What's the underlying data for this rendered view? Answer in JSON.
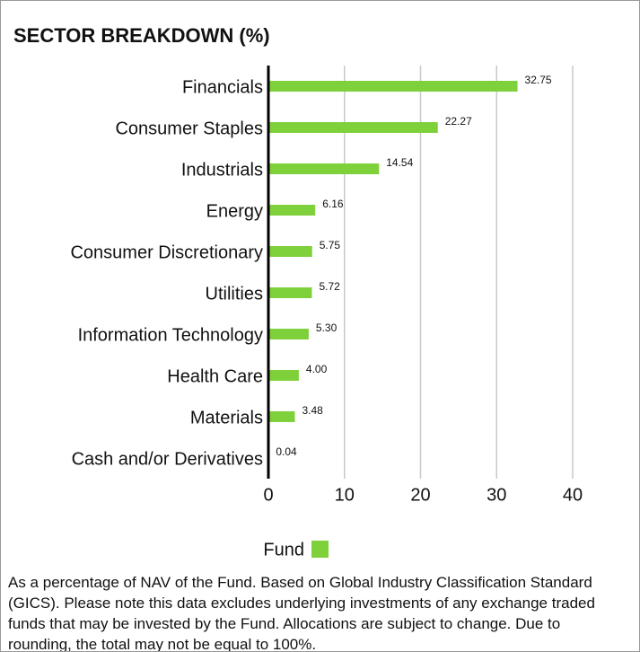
{
  "chart_data": {
    "type": "bar",
    "orientation": "horizontal",
    "title": "SECTOR BREAKDOWN (%)",
    "categories": [
      "Financials",
      "Consumer Staples",
      "Industrials",
      "Energy",
      "Consumer Discretionary",
      "Utilities",
      "Information Technology",
      "Health Care",
      "Materials",
      "Cash and/or Derivatives"
    ],
    "series": [
      {
        "name": "Fund",
        "color": "#7ed13b",
        "values": [
          32.75,
          22.27,
          14.54,
          6.16,
          5.75,
          5.72,
          5.3,
          4,
          3.48,
          0.04
        ],
        "value_labels": [
          "32.75",
          "22.27",
          "14.54",
          "6.16",
          "5.75",
          "5.72",
          "5.30",
          "4.00",
          "3.48",
          "0.04"
        ]
      }
    ],
    "xlim": [
      0,
      40
    ],
    "xticks": [
      0,
      10,
      20,
      30,
      40
    ],
    "grid": true,
    "footnote": "As a percentage of NAV of the Fund. Based on Global Industry Classification Standard (GICS). Please note this data excludes underlying investments of any exchange traded funds that may be invested by the Fund. Allocations are subject to change. Due to rounding, the total may not be equal to 100%."
  }
}
